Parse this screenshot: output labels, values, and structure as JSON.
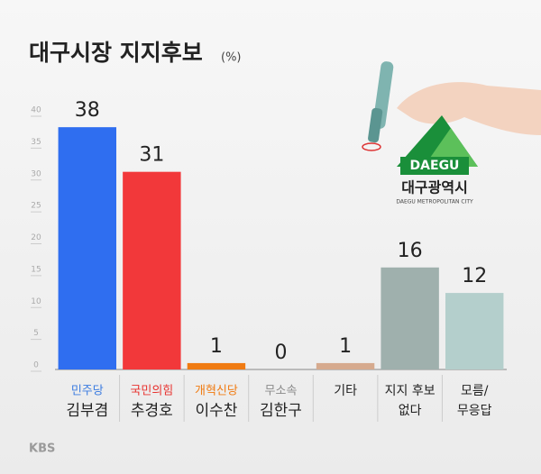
{
  "chart_data": {
    "type": "bar",
    "title": "대구시장 지지후보",
    "unit": "(%)",
    "categories": [
      [
        "민주당",
        "김부겸"
      ],
      [
        "국민의힘",
        "추경호"
      ],
      [
        "개혁신당",
        "이수찬"
      ],
      [
        "무소속",
        "김한구"
      ],
      [
        "기타"
      ],
      [
        "지지 후보",
        "없다"
      ],
      [
        "모름/",
        "무응답"
      ]
    ],
    "label_colors": [
      "#3a7be0",
      "#e8322f",
      "#f07b12",
      "#8a8a8a",
      "#222222",
      "#222222",
      "#222222"
    ],
    "values": [
      38,
      31,
      1,
      0,
      1,
      16,
      12
    ],
    "colors": [
      "#2f6ef0",
      "#f2383a",
      "#f07b12",
      "#cccccc",
      "#d6aa8e",
      "#9fb0ad",
      "#b4cfcc"
    ],
    "ylim": [
      0,
      40
    ],
    "yticks": [
      0,
      5,
      10,
      15,
      20,
      25,
      30,
      35,
      40
    ]
  },
  "logo": {
    "brand": "DAEGU",
    "name": "대구광역시",
    "subtitle": "DAEGU METROPOLITAN CITY"
  },
  "watermark": "KBS"
}
